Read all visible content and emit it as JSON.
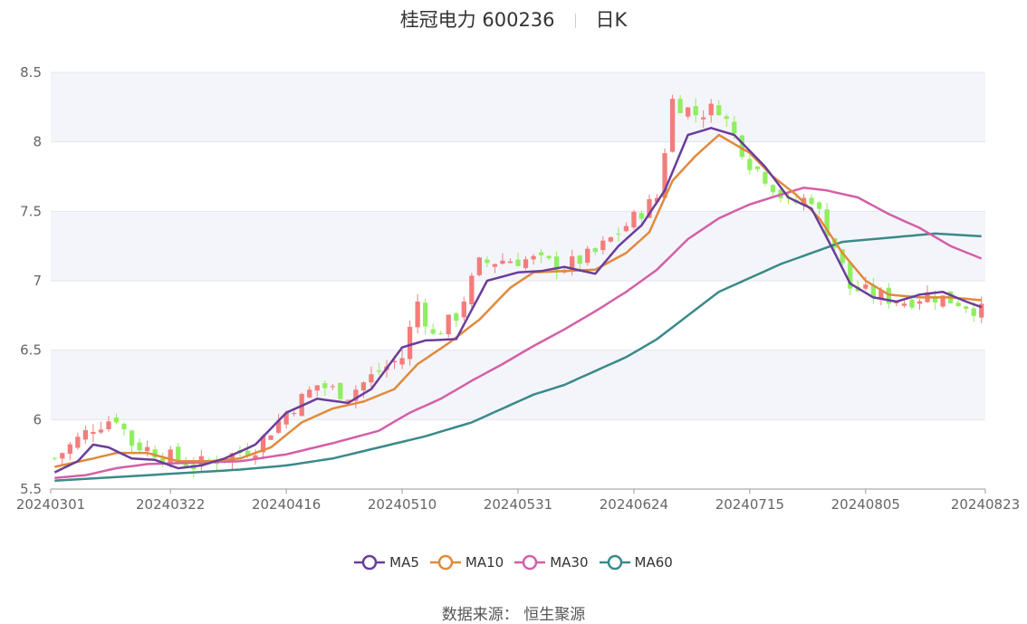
{
  "title": {
    "name": "桂冠电力 600236",
    "period": "日K"
  },
  "source": {
    "label": "数据来源：",
    "value": "恒生聚源"
  },
  "legend": [
    {
      "name": "MA5",
      "color": "#6a3d9a"
    },
    {
      "name": "MA10",
      "color": "#e08a3c"
    },
    {
      "name": "MA30",
      "color": "#d45fa8"
    },
    {
      "name": "MA60",
      "color": "#3a8a8a"
    }
  ],
  "chart_data": {
    "type": "candlestick",
    "up_color": "#f47c7c",
    "down_color": "#90ee60",
    "ylim": [
      5.5,
      8.5
    ],
    "yticks": [
      "5.5",
      "6",
      "6.5",
      "7",
      "7.5",
      "8",
      "8.5"
    ],
    "xticks": [
      "20240301",
      "20240322",
      "20240416",
      "20240510",
      "20240531",
      "20240624",
      "20240715",
      "20240805",
      "20240823"
    ],
    "xtick_index": [
      0,
      15,
      30,
      45,
      60,
      75,
      90,
      105,
      120
    ],
    "num_bars": 121,
    "ohlc_anchors": [
      [
        0,
        5.72
      ],
      [
        5,
        5.95
      ],
      [
        8,
        6.02
      ],
      [
        10,
        5.83
      ],
      [
        14,
        5.75
      ],
      [
        18,
        5.67
      ],
      [
        22,
        5.73
      ],
      [
        26,
        5.8
      ],
      [
        30,
        6.05
      ],
      [
        34,
        6.25
      ],
      [
        38,
        6.18
      ],
      [
        42,
        6.35
      ],
      [
        45,
        6.45
      ],
      [
        47,
        6.85
      ],
      [
        49,
        6.6
      ],
      [
        52,
        6.75
      ],
      [
        55,
        7.12
      ],
      [
        58,
        7.15
      ],
      [
        62,
        7.15
      ],
      [
        66,
        7.1
      ],
      [
        70,
        7.2
      ],
      [
        74,
        7.4
      ],
      [
        78,
        7.6
      ],
      [
        80,
        8.3
      ],
      [
        83,
        8.2
      ],
      [
        86,
        8.25
      ],
      [
        88,
        8.05
      ],
      [
        90,
        7.85
      ],
      [
        92,
        7.75
      ],
      [
        95,
        7.55
      ],
      [
        98,
        7.6
      ],
      [
        101,
        7.25
      ],
      [
        103,
        6.95
      ],
      [
        106,
        6.9
      ],
      [
        110,
        6.85
      ],
      [
        113,
        6.9
      ],
      [
        117,
        6.85
      ],
      [
        120,
        6.78
      ]
    ],
    "ma_anchors": {
      "MA5": [
        [
          0,
          5.62
        ],
        [
          3,
          5.7
        ],
        [
          5,
          5.82
        ],
        [
          7,
          5.8
        ],
        [
          10,
          5.72
        ],
        [
          13,
          5.71
        ],
        [
          16,
          5.65
        ],
        [
          19,
          5.67
        ],
        [
          22,
          5.72
        ],
        [
          26,
          5.82
        ],
        [
          30,
          6.05
        ],
        [
          34,
          6.15
        ],
        [
          38,
          6.12
        ],
        [
          41,
          6.22
        ],
        [
          45,
          6.52
        ],
        [
          48,
          6.57
        ],
        [
          52,
          6.58
        ],
        [
          56,
          7.0
        ],
        [
          60,
          7.06
        ],
        [
          63,
          7.07
        ],
        [
          66,
          7.1
        ],
        [
          70,
          7.05
        ],
        [
          73,
          7.25
        ],
        [
          76,
          7.4
        ],
        [
          79,
          7.65
        ],
        [
          82,
          8.05
        ],
        [
          85,
          8.1
        ],
        [
          88,
          8.05
        ],
        [
          92,
          7.82
        ],
        [
          95,
          7.6
        ],
        [
          98,
          7.52
        ],
        [
          101,
          7.2
        ],
        [
          103,
          6.98
        ],
        [
          106,
          6.88
        ],
        [
          109,
          6.85
        ],
        [
          112,
          6.9
        ],
        [
          115,
          6.92
        ],
        [
          118,
          6.85
        ],
        [
          120,
          6.81
        ]
      ],
      "MA10": [
        [
          0,
          5.66
        ],
        [
          5,
          5.72
        ],
        [
          8,
          5.76
        ],
        [
          12,
          5.76
        ],
        [
          16,
          5.7
        ],
        [
          20,
          5.7
        ],
        [
          24,
          5.72
        ],
        [
          28,
          5.8
        ],
        [
          32,
          5.98
        ],
        [
          36,
          6.08
        ],
        [
          40,
          6.13
        ],
        [
          44,
          6.22
        ],
        [
          47,
          6.4
        ],
        [
          51,
          6.55
        ],
        [
          55,
          6.72
        ],
        [
          59,
          6.95
        ],
        [
          62,
          7.06
        ],
        [
          66,
          7.07
        ],
        [
          70,
          7.08
        ],
        [
          74,
          7.2
        ],
        [
          77,
          7.35
        ],
        [
          80,
          7.72
        ],
        [
          83,
          7.9
        ],
        [
          86,
          8.05
        ],
        [
          90,
          7.92
        ],
        [
          93,
          7.75
        ],
        [
          96,
          7.62
        ],
        [
          99,
          7.45
        ],
        [
          102,
          7.2
        ],
        [
          105,
          7.0
        ],
        [
          108,
          6.9
        ],
        [
          112,
          6.88
        ],
        [
          116,
          6.88
        ],
        [
          120,
          6.86
        ]
      ],
      "MA30": [
        [
          0,
          5.58
        ],
        [
          4,
          5.6
        ],
        [
          8,
          5.65
        ],
        [
          12,
          5.68
        ],
        [
          18,
          5.69
        ],
        [
          24,
          5.7
        ],
        [
          30,
          5.75
        ],
        [
          36,
          5.83
        ],
        [
          42,
          5.92
        ],
        [
          46,
          6.05
        ],
        [
          50,
          6.15
        ],
        [
          54,
          6.28
        ],
        [
          58,
          6.4
        ],
        [
          62,
          6.53
        ],
        [
          66,
          6.65
        ],
        [
          70,
          6.78
        ],
        [
          74,
          6.92
        ],
        [
          78,
          7.08
        ],
        [
          82,
          7.3
        ],
        [
          86,
          7.45
        ],
        [
          90,
          7.55
        ],
        [
          94,
          7.62
        ],
        [
          97,
          7.67
        ],
        [
          100,
          7.65
        ],
        [
          104,
          7.6
        ],
        [
          108,
          7.48
        ],
        [
          112,
          7.38
        ],
        [
          116,
          7.25
        ],
        [
          120,
          7.16
        ]
      ],
      "MA60": [
        [
          0,
          5.56
        ],
        [
          6,
          5.58
        ],
        [
          12,
          5.6
        ],
        [
          18,
          5.62
        ],
        [
          24,
          5.64
        ],
        [
          30,
          5.67
        ],
        [
          36,
          5.72
        ],
        [
          42,
          5.8
        ],
        [
          48,
          5.88
        ],
        [
          54,
          5.98
        ],
        [
          58,
          6.08
        ],
        [
          62,
          6.18
        ],
        [
          66,
          6.25
        ],
        [
          70,
          6.35
        ],
        [
          74,
          6.45
        ],
        [
          78,
          6.58
        ],
        [
          82,
          6.75
        ],
        [
          86,
          6.92
        ],
        [
          90,
          7.02
        ],
        [
          94,
          7.12
        ],
        [
          98,
          7.2
        ],
        [
          102,
          7.28
        ],
        [
          106,
          7.3
        ],
        [
          110,
          7.32
        ],
        [
          114,
          7.34
        ],
        [
          117,
          7.33
        ],
        [
          120,
          7.32
        ]
      ]
    }
  }
}
